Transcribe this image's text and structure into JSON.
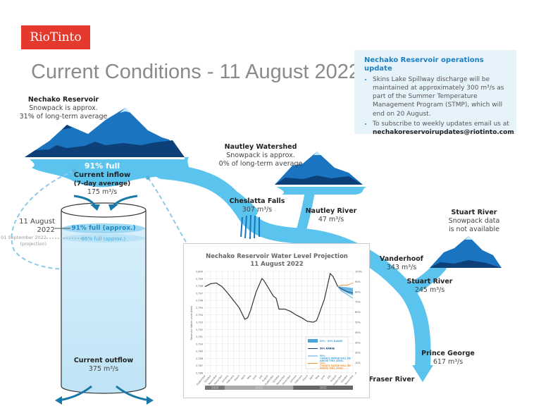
{
  "logo": {
    "text": "RioTinto",
    "color": "#e5392e"
  },
  "header": {
    "title": "Current Conditions - 11 August 2022"
  },
  "info_box": {
    "heading": "Nechako Reservoir operations update",
    "bullets": [
      "Skins Lake Spillway discharge will be maintained at approximately 300 m³/s as part of the Summer Temperature Management Program (STMP), which will end on 20 August.",
      "To subscribe to weekly updates email us at"
    ],
    "email": "nechakoreservoirupdates@riotinto.com"
  },
  "nechako_reservoir": {
    "name": "Nechako Reservoir",
    "snowpack_line1": "Snowpack is approx.",
    "snowpack_line2": "31% of long-term average",
    "full": "91% full",
    "inflow_label": "Current inflow",
    "inflow_note": "(7-day average)",
    "inflow_value": "175 m³/s"
  },
  "cylinder": {
    "current_date_line1": "11 August",
    "current_date_line2": "2022",
    "current_level": "91% full (approx.)",
    "current_level_pct": 91,
    "projection_date": "01 September 2022",
    "projection_note": "(projection)",
    "projection_level": "86% full (approx.)",
    "projection_level_pct": 86,
    "outflow_label": "Current outflow",
    "outflow_value": "375 m³/s"
  },
  "nautley_watershed": {
    "name": "Nautley Watershed",
    "line1": "Snowpack is approx.",
    "line2": "0% of long-term average"
  },
  "cheslatta_falls": {
    "name": "Cheslatta Falls",
    "value": "307 m³/s"
  },
  "nautley_river": {
    "name": "Nautley River",
    "value": "47 m³/s"
  },
  "stuart_watershed": {
    "name": "Stuart River",
    "line1": "Snowpack data",
    "line2": "is not available"
  },
  "vanderhoof": {
    "name": "Vanderhoof",
    "value": "343 m³/s"
  },
  "stuart_river": {
    "name": "Stuart River",
    "value": "245 m³/s"
  },
  "prince_george": {
    "name": "Prince George",
    "value": "617 m³/s"
  },
  "fraser_river": {
    "name": "Fraser River"
  },
  "colors": {
    "river": "#5bc4ee",
    "mountain": "#1a74c0",
    "mountain_dark": "#0d3f78",
    "accent": "#1c7fc0",
    "projection_10": "#f0953a"
  },
  "chart_data": {
    "type": "line",
    "title": "Nechako Reservoir Water Level Projection",
    "subtitle": "11 August 2022",
    "ylabel": "Reservoir Water Level (feet)",
    "ylim": [
      2786,
      2800
    ],
    "y_ticks": [
      "2,800",
      "2,799",
      "2,798",
      "2,797",
      "2,796",
      "2,795",
      "2,794",
      "2,793",
      "2,792",
      "2,791",
      "2,790",
      "2,789",
      "2,788",
      "2,787",
      "2,786"
    ],
    "y2_ticks": [
      "100%",
      "90%",
      "80%",
      "70%",
      "60%",
      "50%",
      "40%",
      "30%",
      "20%",
      "10%",
      "0"
    ],
    "months": [
      "September",
      "October",
      "November",
      "December",
      "January",
      "February",
      "March",
      "April",
      "May",
      "June",
      "July",
      "August",
      "September",
      "October",
      "November",
      "December",
      "January",
      "February",
      "March",
      "April",
      "May",
      "June",
      "July",
      "August",
      "September",
      "October",
      "November"
    ],
    "years": [
      {
        "label": "2020",
        "months": 4
      },
      {
        "label": "2021",
        "months": 12
      },
      {
        "label": "2022",
        "months": 11
      }
    ],
    "grid": true,
    "legend_position": "bottom-right",
    "series": [
      {
        "name": "",
        "x": [
          0,
          1,
          2,
          3,
          4,
          5,
          6,
          7,
          7.5,
          8,
          9,
          10,
          10.3,
          11,
          12,
          12.5,
          13,
          14,
          15,
          16,
          17,
          18,
          19,
          19.6,
          20,
          21,
          22,
          22.5,
          23.35
        ],
        "y": [
          2797.9,
          2798.3,
          2798.4,
          2797.9,
          2797.0,
          2796.0,
          2795.0,
          2793.4,
          2793.6,
          2794.6,
          2797.2,
          2799.0,
          2798.8,
          2797.9,
          2796.6,
          2796.3,
          2794.8,
          2794.8,
          2794.5,
          2794.0,
          2793.6,
          2793.1,
          2793.0,
          2793.2,
          2794.0,
          2796.2,
          2799.7,
          2799.3,
          2797.9
        ]
      },
      {
        "name": "50% RANGE",
        "x": [
          23.35,
          24,
          25,
          26
        ],
        "y": [
          2797.9,
          2797.6,
          2797.2,
          2797.0
        ]
      },
      {
        "name": "90% CHANCE WATER WILL BE ABOVE THIS LEVEL",
        "x": [
          23.35,
          24,
          25,
          26
        ],
        "y": [
          2797.9,
          2797.3,
          2796.8,
          2796.3
        ]
      },
      {
        "name": "10% CHANCE WATER WILL BE ABOVE THIS LEVEL",
        "x": [
          23.35,
          24,
          25,
          26
        ],
        "y": [
          2797.9,
          2798.1,
          2798.1,
          2798.4
        ]
      }
    ],
    "band": {
      "name": "20% - 80% RANGE",
      "x": [
        23.35,
        24,
        25,
        26
      ],
      "upper": [
        2797.9,
        2797.9,
        2797.8,
        2797.7
      ],
      "lower": [
        2797.9,
        2797.4,
        2797.0,
        2796.7
      ]
    }
  }
}
